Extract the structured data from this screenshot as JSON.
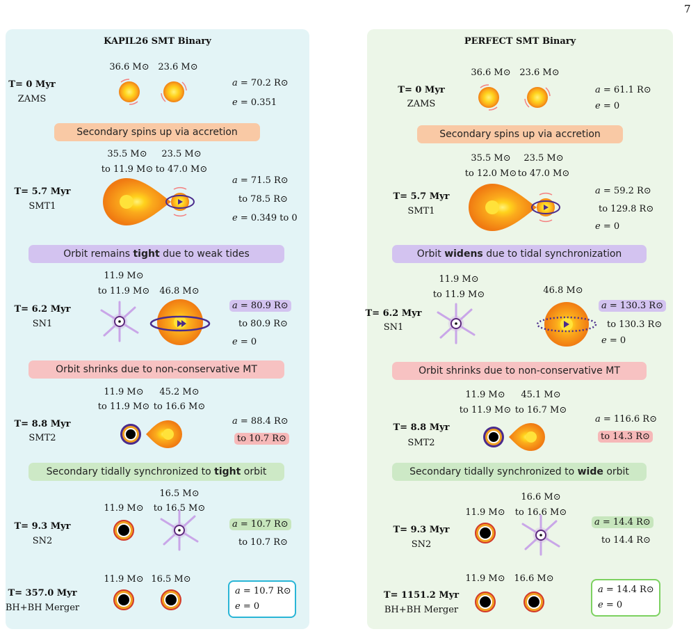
{
  "page_number": "7",
  "left": {
    "title": "KAPIL26 SMT Binary",
    "stages": [
      {
        "time": "T= 0 Myr",
        "label": "ZAMS",
        "m1": "36.6 M⊙",
        "m2": "23.6 M⊙",
        "a": "= 70.2 R⊙",
        "e": "= 0.351"
      },
      {
        "time": "T= 5.7 Myr",
        "label": "SMT1",
        "m1a": "35.5 M⊙",
        "m1b": "to 11.9 M⊙",
        "m2a": "23.5 M⊙",
        "m2b": "to 47.0 M⊙",
        "a": "= 71.5 R⊙",
        "a_to": "to 78.5 R⊙",
        "e": "= 0.349 to 0"
      },
      {
        "time": "T= 6.2 Myr",
        "label": "SN1",
        "m1a": "11.9 M⊙",
        "m1b": "to 11.9 M⊙",
        "m2": "46.8 M⊙",
        "a": "= 80.9 R⊙",
        "a_to": "to 80.9 R⊙",
        "e": "= 0"
      },
      {
        "time": "T= 8.8 Myr",
        "label": "SMT2",
        "m1a": "11.9 M⊙",
        "m1b": "to 11.9 M⊙",
        "m2a": "45.2 M⊙",
        "m2b": "to 16.6 M⊙",
        "a": "= 88.4 R⊙",
        "a_to": "to 10.7 R⊙"
      },
      {
        "time": "T= 9.3 Myr",
        "label": "SN2",
        "m1": "11.9 M⊙",
        "m2a": "16.5 M⊙",
        "m2b": "to 16.5 M⊙",
        "a": "= 10.7 R⊙",
        "a_to": "to 10.7 R⊙"
      },
      {
        "time": "T= 357.0 Myr",
        "label": "BH+BH Merger",
        "m1": "11.9 M⊙",
        "m2": "16.5 M⊙",
        "a": "= 10.7 R⊙",
        "e": "= 0"
      }
    ],
    "banners": {
      "b1": "Secondary spins up via accretion",
      "b2_pre": "Orbit remains ",
      "b2_bold": "tight",
      "b2_post": " due to weak tides",
      "b3": "Orbit shrinks due to non-conservative MT",
      "b4_pre": "Secondary tidally synchronized to ",
      "b4_bold": "tight",
      "b4_post": " orbit"
    }
  },
  "right": {
    "title": "PERFECT SMT Binary",
    "stages": [
      {
        "time": "T= 0 Myr",
        "label": "ZAMS",
        "m1": "36.6 M⊙",
        "m2": "23.6 M⊙",
        "a": "= 61.1 R⊙",
        "e": "= 0"
      },
      {
        "time": "T= 5.7 Myr",
        "label": "SMT1",
        "m1a": "35.5 M⊙",
        "m1b": "to 12.0 M⊙",
        "m2a": "23.5 M⊙",
        "m2b": "to 47.0 M⊙",
        "a": "= 59.2 R⊙",
        "a_to": "to 129.8 R⊙",
        "e": "= 0"
      },
      {
        "time": "T= 6.2 Myr",
        "label": "SN1",
        "m1a": "11.9 M⊙",
        "m1b": "to 11.9 M⊙",
        "m2": "46.8 M⊙",
        "a": "= 130.3 R⊙",
        "a_to": "to 130.3 R⊙",
        "e": "= 0"
      },
      {
        "time": "T= 8.8 Myr",
        "label": "SMT2",
        "m1a": "11.9 M⊙",
        "m1b": "to 11.9 M⊙",
        "m2a": "45.1 M⊙",
        "m2b": "to 16.7 M⊙",
        "a": "= 116.6 R⊙",
        "a_to": "to 14.3 R⊙"
      },
      {
        "time": "T= 9.3 Myr",
        "label": "SN2",
        "m1": "11.9 M⊙",
        "m2a": "16.6 M⊙",
        "m2b": "to 16.6 M⊙",
        "a": "= 14.4 R⊙",
        "a_to": "to 14.4 R⊙"
      },
      {
        "time": "T= 1151.2 Myr",
        "label": "BH+BH Merger",
        "m1": "11.9 M⊙",
        "m2": "16.6 M⊙",
        "a": "= 14.4 R⊙",
        "e": "= 0"
      }
    ],
    "banners": {
      "b1": "Secondary spins up via accretion",
      "b2_pre": "Orbit ",
      "b2_bold": "widens",
      "b2_post": " due to tidal synchronization",
      "b3": "Orbit shrinks due to non-conservative MT",
      "b4_pre": "Secondary tidally synchronized to ",
      "b4_bold": "wide",
      "b4_post": " orbit"
    }
  },
  "symbols": {
    "a": "a",
    "e": "e"
  },
  "colors": {
    "left_panel": "#e3f4f6",
    "right_panel": "#ecf6e8",
    "star": "#f59a1a",
    "orbit": "#4a2b8c",
    "accent_blue": "#29b5d6",
    "accent_green": "#7cd160"
  }
}
